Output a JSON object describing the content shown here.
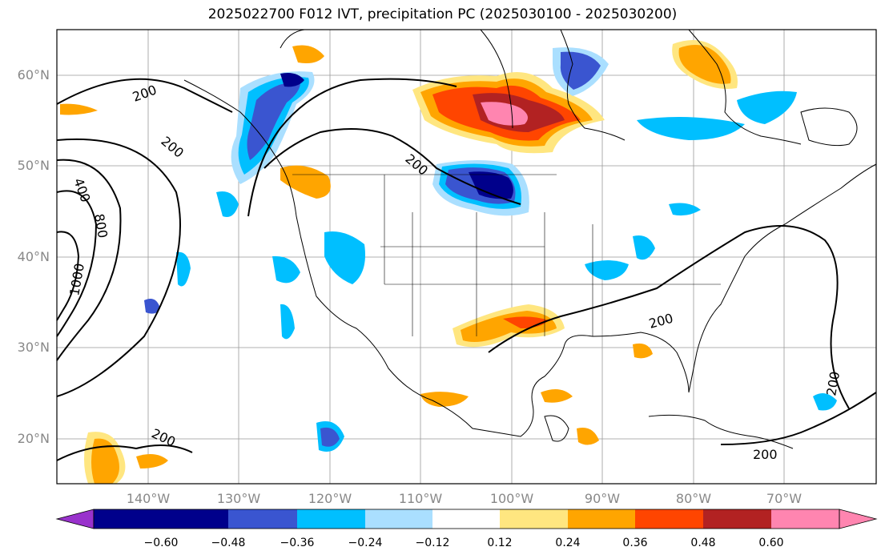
{
  "title": "2025022700 F012 IVT, precipitation PC (2025030100 - 2025030200)",
  "map": {
    "lon_labels": [
      "140°W",
      "130°W",
      "120°W",
      "110°W",
      "100°W",
      "90°W",
      "80°W",
      "70°W"
    ],
    "lat_labels": [
      "60°N",
      "50°N",
      "40°N",
      "30°N",
      "20°N"
    ],
    "ivt_contour_labels": [
      "200",
      "200",
      "200",
      "400",
      "800",
      "1000",
      "200",
      "200",
      "200",
      "200"
    ]
  },
  "colorbar": {
    "tick_labels": [
      "−0.60",
      "−0.48",
      "−0.36",
      "−0.24",
      "−0.12",
      "0.12",
      "0.24",
      "0.36",
      "0.48",
      "0.60"
    ],
    "colors": [
      "#9932cc",
      "#00008b",
      "#3a55d0",
      "#00bfff",
      "#aadfff",
      "#ffffff",
      "#ffe680",
      "#ffa500",
      "#ff4500",
      "#b22222",
      "#ff85b0"
    ]
  }
}
